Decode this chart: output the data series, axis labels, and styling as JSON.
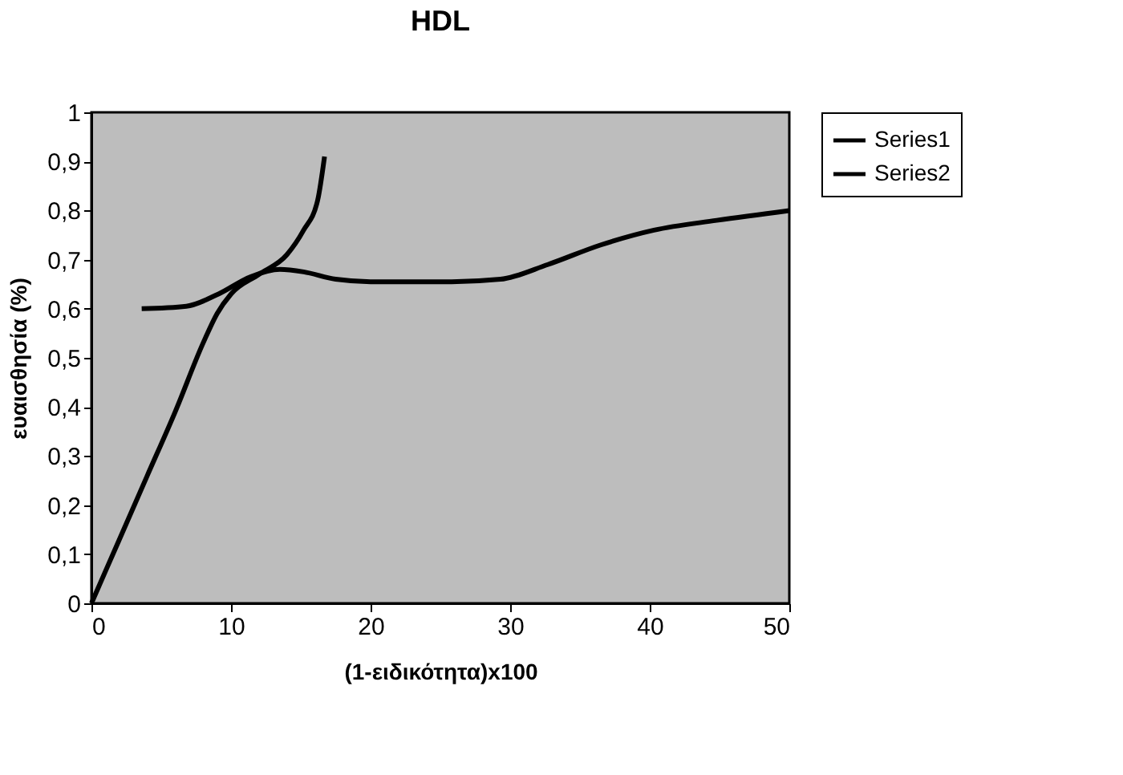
{
  "chart_data": {
    "type": "line",
    "title": "HDL",
    "xlabel": "(1-ειδικότητα)x100",
    "ylabel": "ευαισθησία (%)",
    "xlim": [
      0,
      50
    ],
    "xticks": [
      0,
      10,
      20,
      30,
      40,
      50
    ],
    "ylim": [
      0,
      1
    ],
    "yticks": [
      0,
      {
        "value": 0.1,
        "label": "0,1"
      },
      {
        "value": 0.2,
        "label": "0,2"
      },
      {
        "value": 0.3,
        "label": "0,3"
      },
      {
        "value": 0.4,
        "label": "0,4"
      },
      {
        "value": 0.5,
        "label": "0,5"
      },
      {
        "value": 0.6,
        "label": "0,6"
      },
      {
        "value": 0.7,
        "label": "0,7"
      },
      {
        "value": 0.8,
        "label": "0,8"
      },
      {
        "value": 0.9,
        "label": "0,9"
      },
      1
    ],
    "grid": false,
    "legend": "right",
    "marker": "none",
    "line_style": "solid",
    "series": [
      {
        "name": "Series1",
        "color": "#000000",
        "x": [
          0,
          2,
          4,
          6,
          8,
          9,
          10,
          12,
          14,
          15.2,
          16.2,
          16.7
        ],
        "values": [
          0,
          0.13,
          0.26,
          0.39,
          0.53,
          0.59,
          0.63,
          0.67,
          0.71,
          0.76,
          0.82,
          0.91
        ]
      },
      {
        "name": "Series2",
        "color": "#000000",
        "x": [
          3.6,
          6.8,
          9.1,
          11.4,
          13.5,
          15.2,
          17.5,
          20,
          25.8,
          29.3,
          32.7,
          36.5,
          40.3,
          44.8,
          50
        ],
        "values": [
          0.6,
          0.605,
          0.63,
          0.665,
          0.68,
          0.675,
          0.66,
          0.655,
          0.655,
          0.66,
          0.69,
          0.73,
          0.76,
          0.78,
          0.8
        ]
      }
    ]
  }
}
